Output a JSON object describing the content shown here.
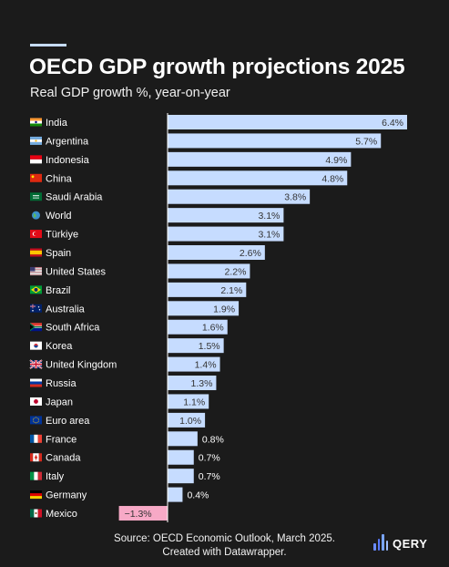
{
  "title": "OECD GDP growth projections 2025",
  "subtitle": "Real GDP growth %, year-on-year",
  "source_line1": "Source: OECD Economic Outlook, March 2025.",
  "source_line2": "Created with Datawrapper.",
  "brand": "QERY",
  "colors": {
    "background": "#1b1b1b",
    "positive_bar": "#c6dcff",
    "negative_bar": "#f7a9c6",
    "bar_label": "#333333",
    "axis_line": "#ffffff"
  },
  "chart_data": {
    "type": "bar",
    "orientation": "horizontal",
    "title": "OECD GDP growth projections 2025",
    "subtitle": "Real GDP growth %, year-on-year",
    "categories": [
      "India",
      "Argentina",
      "Indonesia",
      "China",
      "Saudi Arabia",
      "World",
      "Türkiye",
      "Spain",
      "United States",
      "Brazil",
      "Australia",
      "South Africa",
      "Korea",
      "United Kingdom",
      "Russia",
      "Japan",
      "Euro area",
      "France",
      "Canada",
      "Italy",
      "Germany",
      "Mexico"
    ],
    "flag_icons": [
      "india-flag-icon",
      "argentina-flag-icon",
      "indonesia-flag-icon",
      "china-flag-icon",
      "saudi-arabia-flag-icon",
      "world-globe-icon",
      "turkiye-flag-icon",
      "spain-flag-icon",
      "united-states-flag-icon",
      "brazil-flag-icon",
      "australia-flag-icon",
      "south-africa-flag-icon",
      "korea-flag-icon",
      "united-kingdom-flag-icon",
      "russia-flag-icon",
      "japan-flag-icon",
      "euro-area-flag-icon",
      "france-flag-icon",
      "canada-flag-icon",
      "italy-flag-icon",
      "germany-flag-icon",
      "mexico-flag-icon"
    ],
    "values": [
      6.4,
      5.7,
      4.9,
      4.8,
      3.8,
      3.1,
      3.1,
      2.6,
      2.2,
      2.1,
      1.9,
      1.6,
      1.5,
      1.4,
      1.3,
      1.1,
      1.0,
      0.8,
      0.7,
      0.7,
      0.4,
      -1.3
    ],
    "value_labels": [
      "6.4%",
      "5.7%",
      "4.9%",
      "4.8%",
      "3.8%",
      "3.1%",
      "3.1%",
      "2.6%",
      "2.2%",
      "2.1%",
      "1.9%",
      "1.6%",
      "1.5%",
      "1.4%",
      "1.3%",
      "1.1%",
      "1.0%",
      "0.8%",
      "0.7%",
      "0.7%",
      "0.4%",
      "−1.3%"
    ],
    "unit": "%",
    "xlim": [
      -1.3,
      6.4
    ],
    "grid": false,
    "legend": "none"
  }
}
